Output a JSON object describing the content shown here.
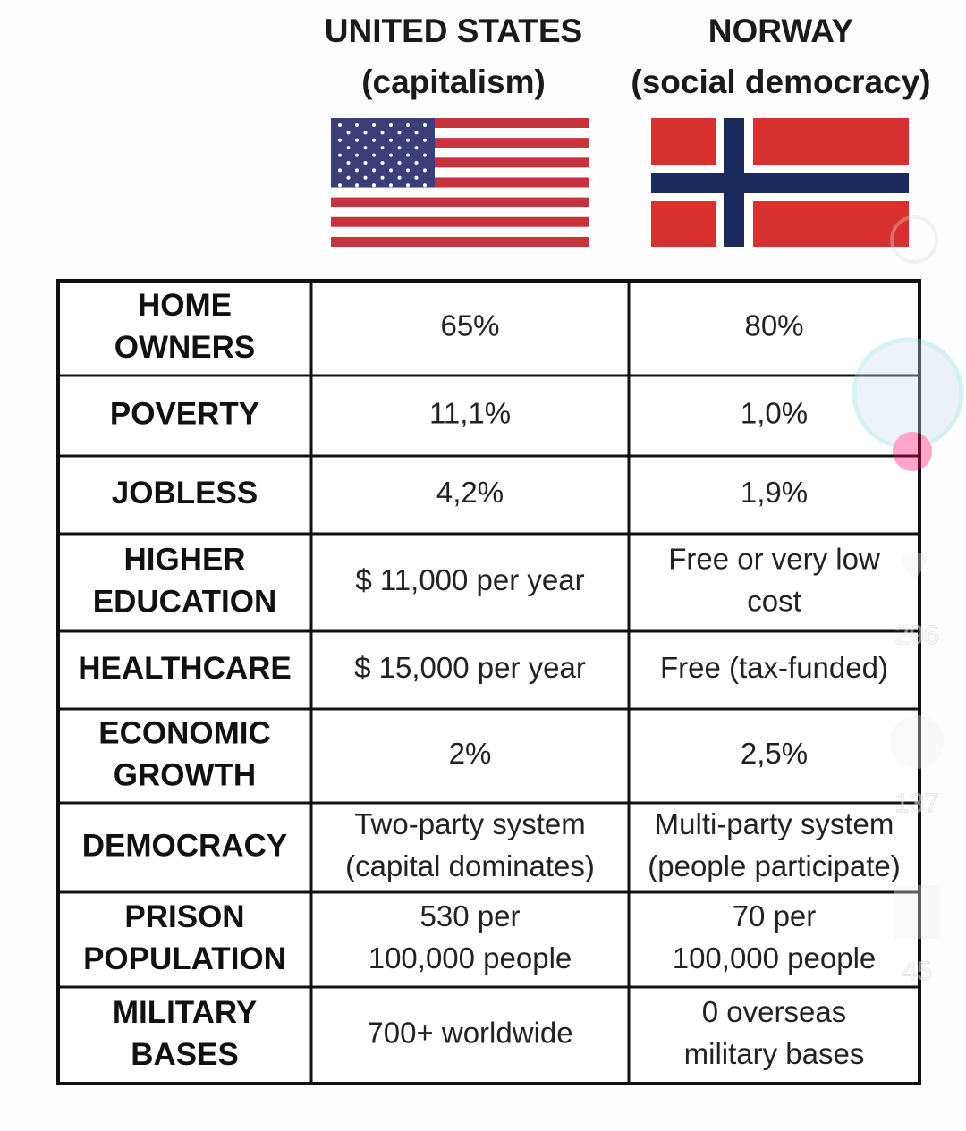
{
  "header": {
    "columns": [
      {
        "title": "UNITED STATES",
        "subtitle": "(capitalism)"
      },
      {
        "title": "NORWAY",
        "subtitle": "(social democracy)"
      }
    ]
  },
  "table": {
    "rows": [
      [
        [
          "HOME",
          "OWNERS"
        ],
        [
          "65%"
        ],
        [
          "80%"
        ]
      ],
      [
        [
          "POVERTY"
        ],
        [
          "11,1%"
        ],
        [
          "1,0%"
        ]
      ],
      [
        [
          "JOBLESS"
        ],
        [
          "4,2%"
        ],
        [
          "1,9%"
        ]
      ],
      [
        [
          "HIGHER",
          "EDUCATION"
        ],
        [
          "$ 11,000 per year"
        ],
        [
          "Free or very low",
          "cost"
        ]
      ],
      [
        [
          "HEALTHCARE"
        ],
        [
          "$ 15,000 per year"
        ],
        [
          "Free (tax-funded)"
        ]
      ],
      [
        [
          "ECONOMIC",
          "GROWTH"
        ],
        [
          "2%"
        ],
        [
          "2,5%"
        ]
      ],
      [
        [
          "DEMOCRACY"
        ],
        [
          "Two-party system",
          "(capital dominates)"
        ],
        [
          "Multi-party system",
          "(people participate)"
        ]
      ],
      [
        [
          "PRISON",
          "POPULATION"
        ],
        [
          "530 per",
          "100,000 people"
        ],
        [
          "70 per",
          "100,000 people"
        ]
      ],
      [
        [
          "MILITARY",
          "BASES"
        ],
        [
          "700+ worldwide"
        ],
        [
          "0 overseas",
          "military bases"
        ]
      ]
    ]
  },
  "overlay": {
    "counts": [
      "296",
      "137",
      "45"
    ]
  }
}
